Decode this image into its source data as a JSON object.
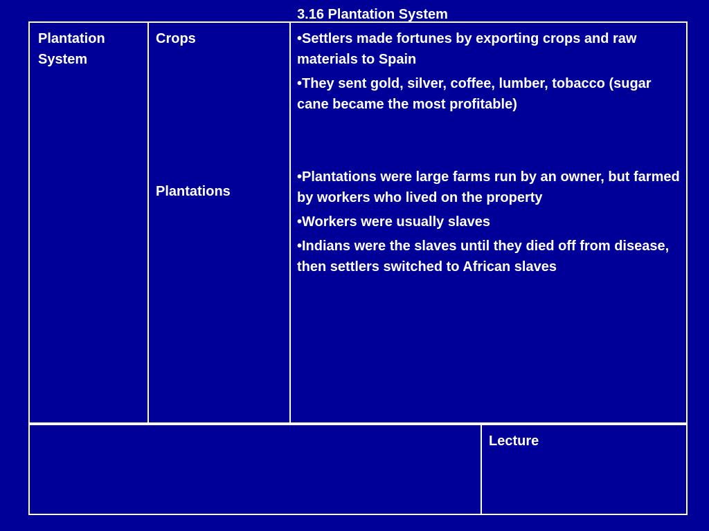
{
  "slide": {
    "title": "3.16 Plantation System"
  },
  "table": {
    "topic": "Plantation System",
    "sections": [
      "Crops",
      "Plantations"
    ],
    "notes_group_1": [
      "•Settlers made fortunes by exporting crops and raw materials to Spain",
      "•They sent gold, silver, coffee, lumber, tobacco (sugar cane became the most profitable)"
    ],
    "notes_group_2": [
      "•Plantations were large farms run by an owner, but farmed by workers who lived on the property",
      "•Workers were usually slaves",
      "•Indians were the slaves until they died off from disease, then settlers switched to African slaves"
    ],
    "summary": "",
    "source": "Lecture"
  },
  "colors": {
    "background": "#000099",
    "text": "#ffffff",
    "border": "#ffffff"
  }
}
